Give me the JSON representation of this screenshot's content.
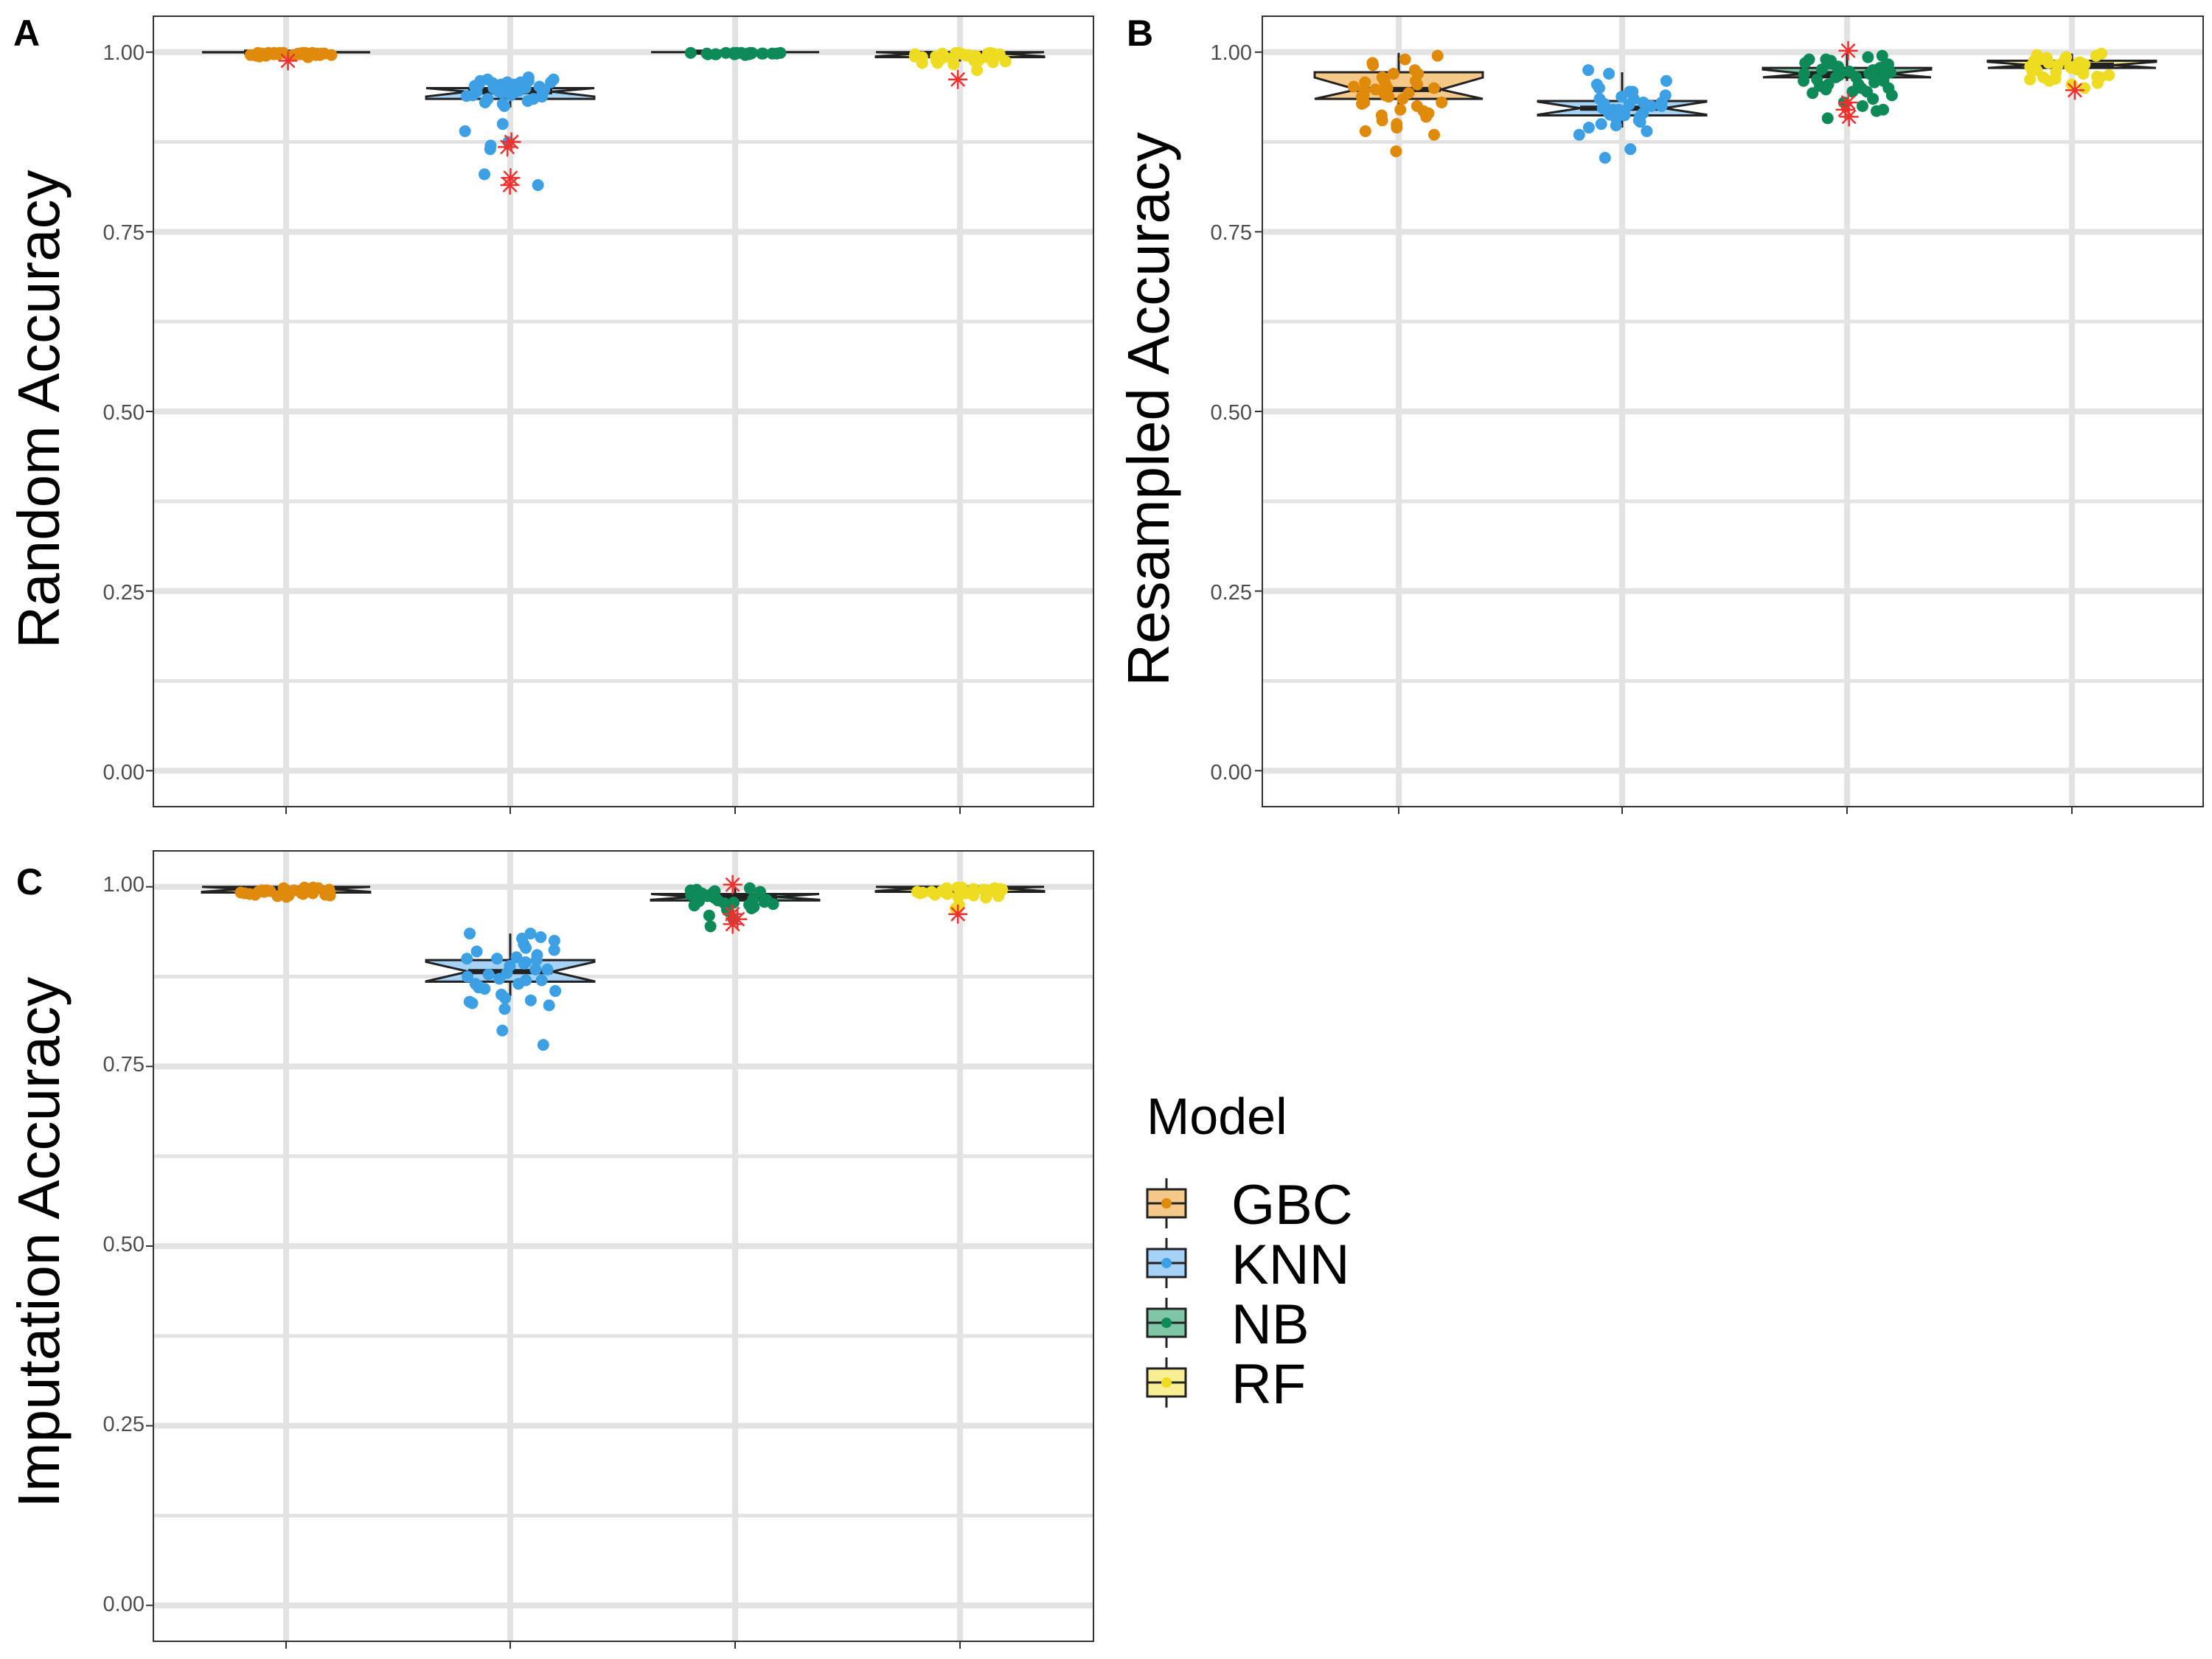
{
  "chart_data": [
    {
      "type": "boxplot",
      "panel_label": "A",
      "ylabel": "Random Accuracy",
      "ylim": [
        -0.05,
        1.05
      ],
      "yticks": [
        "0.00",
        "0.25",
        "0.50",
        "0.75",
        "1.00"
      ],
      "grid": true,
      "series": [
        {
          "name": "GBC",
          "box": [
            0.9995,
            0.9997,
            1.0,
            1.0,
            1.0
          ],
          "points": [
            0.997,
            0.999,
            0.998,
            0.996,
            0.999,
            0.997,
            0.995,
            0.998,
            0.999,
            0.996,
            0.993,
            0.998,
            0.997,
            0.999,
            0.996,
            0.998,
            0.994,
            0.999,
            0.997,
            0.998,
            0.996,
            0.999,
            0.998,
            0.997,
            0.995,
            0.999,
            0.998,
            0.996,
            0.997,
            0.999
          ],
          "outliers": [
            0.988
          ]
        },
        {
          "name": "KNN",
          "box": [
            0.923,
            0.935,
            0.945,
            0.95,
            0.955
          ],
          "points": [
            0.96,
            0.955,
            0.95,
            0.945,
            0.94,
            0.962,
            0.958,
            0.935,
            0.93,
            0.925,
            0.948,
            0.952,
            0.957,
            0.943,
            0.938,
            0.965,
            0.953,
            0.946,
            0.94,
            0.932,
            0.955,
            0.96,
            0.935,
            0.949,
            0.944,
            0.928,
            0.958,
            0.951,
            0.939,
            0.962,
            0.945,
            0.95,
            0.89,
            0.87,
            0.865,
            0.9,
            0.83,
            0.815,
            0.875,
            0.955,
            0.94,
            0.958
          ],
          "outliers": [
            0.875,
            0.868,
            0.825,
            0.815
          ]
        },
        {
          "name": "NB",
          "box": [
            0.999,
            1.0,
            1.0,
            1.0,
            1.0
          ],
          "points": [
            0.998,
            0.999,
            0.997,
            0.999,
            0.998,
            0.997,
            0.999,
            0.998,
            0.996,
            0.999,
            0.998,
            0.997,
            0.999,
            0.998,
            0.999,
            0.997,
            0.998,
            0.999,
            0.997,
            0.998,
            0.999,
            0.998
          ],
          "outliers": []
        },
        {
          "name": "RF",
          "box": [
            0.987,
            0.993,
            0.998,
            1.0,
            1.0
          ],
          "points": [
            0.998,
            0.995,
            0.99,
            0.985,
            0.997,
            0.993,
            0.988,
            0.999,
            0.996,
            0.992,
            0.986,
            0.994,
            0.998,
            0.991,
            0.983,
            0.997,
            0.995,
            0.989,
            0.999,
            0.993,
            0.987,
            0.996,
            0.99,
            0.998,
            0.994,
            0.985,
            0.997,
            0.992,
            0.975,
            0.995,
            0.999,
            0.988,
            0.996,
            0.993
          ],
          "outliers": [
            0.962
          ]
        }
      ]
    },
    {
      "type": "boxplot",
      "panel_label": "B",
      "ylabel": "Resampled Accuracy",
      "ylim": [
        -0.05,
        1.05
      ],
      "yticks": [
        "0.00",
        "0.25",
        "0.50",
        "0.75",
        "1.00"
      ],
      "grid": true,
      "series": [
        {
          "name": "GBC",
          "box": [
            0.92,
            0.935,
            0.948,
            0.972,
            0.999
          ],
          "points": [
            0.99,
            0.985,
            0.975,
            0.97,
            0.965,
            0.96,
            0.955,
            0.95,
            0.948,
            0.945,
            0.94,
            0.935,
            0.93,
            0.925,
            0.92,
            0.915,
            0.91,
            0.905,
            0.9,
            0.895,
            0.89,
            0.885,
            0.96,
            0.952,
            0.943,
            0.938,
            0.928,
            0.958,
            0.947,
            0.93,
            0.918,
            0.97,
            0.955,
            0.94,
            0.982,
            0.862,
            0.995,
            0.912,
            0.938,
            0.95
          ],
          "outliers": []
        },
        {
          "name": "KNN",
          "box": [
            0.895,
            0.912,
            0.922,
            0.932,
            0.972
          ],
          "points": [
            0.97,
            0.96,
            0.955,
            0.95,
            0.945,
            0.94,
            0.935,
            0.93,
            0.928,
            0.925,
            0.922,
            0.918,
            0.915,
            0.912,
            0.91,
            0.905,
            0.9,
            0.895,
            0.89,
            0.885,
            0.975,
            0.938,
            0.92,
            0.913,
            0.903,
            0.935,
            0.927,
            0.917,
            0.908,
            0.898,
            0.865,
            0.853,
            0.93,
            0.925,
            0.945,
            0.92
          ],
          "outliers": []
        },
        {
          "name": "NB",
          "box": [
            0.96,
            0.965,
            0.97,
            0.978,
            0.998
          ],
          "points": [
            0.995,
            0.99,
            0.985,
            0.98,
            0.978,
            0.975,
            0.972,
            0.97,
            0.968,
            0.965,
            0.962,
            0.96,
            0.955,
            0.95,
            0.945,
            0.94,
            0.935,
            0.93,
            0.925,
            0.92,
            0.985,
            0.975,
            0.965,
            0.955,
            0.945,
            0.99,
            0.98,
            0.97,
            0.96,
            0.95,
            0.908,
            0.918,
            0.993,
            0.983,
            0.973,
            0.963,
            0.953,
            0.943,
            0.976,
            0.967,
            0.958,
            0.948,
            0.988,
            0.978,
            0.968
          ],
          "outliers": [
            1.002,
            0.93,
            0.92,
            0.91
          ]
        },
        {
          "name": "RF",
          "box": [
            0.973,
            0.978,
            0.982,
            0.988,
            0.998
          ],
          "points": [
            0.998,
            0.995,
            0.992,
            0.99,
            0.988,
            0.985,
            0.982,
            0.98,
            0.978,
            0.975,
            0.972,
            0.97,
            0.968,
            0.965,
            0.962,
            0.96,
            0.957,
            0.955,
            0.95,
            0.985,
            0.975,
            0.965,
            0.993,
            0.983,
            0.973,
            0.963,
            0.996,
            0.986,
            0.976,
            0.966,
            0.99,
            0.98
          ],
          "outliers": [
            0.947
          ]
        }
      ]
    },
    {
      "type": "boxplot",
      "panel_label": "C",
      "ylabel": "Imputation Accuracy",
      "ylim": [
        -0.05,
        1.05
      ],
      "yticks": [
        "0.00",
        "0.25",
        "0.50",
        "0.75",
        "1.00"
      ],
      "grid": true,
      "series": [
        {
          "name": "GBC",
          "box": [
            0.986,
            0.992,
            0.997,
            1.0,
            1.0
          ],
          "points": [
            0.999,
            0.997,
            0.995,
            0.993,
            0.991,
            0.989,
            0.987,
            0.998,
            0.996,
            0.994,
            0.992,
            0.99,
            0.988,
            0.986,
            0.999,
            0.997,
            0.995,
            0.993,
            0.991,
            0.989,
            0.998,
            0.996,
            0.994,
            0.992,
            0.99,
            0.988,
            0.997,
            0.995,
            0.993,
            0.991
          ],
          "outliers": []
        },
        {
          "name": "KNN",
          "box": [
            0.848,
            0.868,
            0.882,
            0.898,
            0.935
          ],
          "points": [
            0.935,
            0.93,
            0.925,
            0.92,
            0.915,
            0.91,
            0.905,
            0.9,
            0.895,
            0.89,
            0.885,
            0.88,
            0.875,
            0.87,
            0.865,
            0.86,
            0.855,
            0.85,
            0.845,
            0.84,
            0.835,
            0.83,
            0.928,
            0.912,
            0.898,
            0.885,
            0.872,
            0.858,
            0.842,
            0.935,
            0.9,
            0.87,
            0.8,
            0.78,
            0.893,
            0.878,
            0.862,
            0.838,
            0.865,
            0.902
          ],
          "outliers": []
        },
        {
          "name": "NB",
          "box": [
            0.976,
            0.981,
            0.986,
            0.99,
            0.999
          ],
          "points": [
            0.998,
            0.996,
            0.994,
            0.992,
            0.99,
            0.988,
            0.986,
            0.984,
            0.982,
            0.98,
            0.978,
            0.976,
            0.974,
            0.972,
            0.97,
            0.968,
            0.995,
            0.991,
            0.987,
            0.983,
            0.979,
            0.975,
            0.96,
            0.955,
            0.945,
            0.993,
            0.989,
            0.985,
            0.981,
            0.977,
            0.973,
            0.966
          ],
          "outliers": [
            1.003,
            0.962,
            0.955,
            0.948
          ]
        },
        {
          "name": "RF",
          "box": [
            0.986,
            0.993,
            0.998,
            1.0,
            1.0
          ],
          "points": [
            0.999,
            0.997,
            0.995,
            0.993,
            0.991,
            0.989,
            0.987,
            0.985,
            0.998,
            0.996,
            0.994,
            0.992,
            0.99,
            0.988,
            0.975,
            0.97,
            0.999,
            0.997,
            0.995,
            0.993,
            0.991,
            0.998,
            0.996,
            0.994,
            0.99,
            0.986
          ],
          "outliers": [
            0.962
          ]
        }
      ]
    }
  ],
  "legend": {
    "title": "Model",
    "items": [
      {
        "label": "GBC"
      },
      {
        "label": "KNN"
      },
      {
        "label": "NB"
      },
      {
        "label": "RF"
      }
    ]
  },
  "colors": {
    "GBC": {
      "point": "#E08A0B",
      "fill": "#F5C98A"
    },
    "KNN": {
      "point": "#3EA0E4",
      "fill": "#A6D3F5"
    },
    "NB": {
      "point": "#0E8A58",
      "fill": "#7FC6A6"
    },
    "RF": {
      "point": "#EEDC22",
      "fill": "#F8EE93"
    },
    "outlier": "#F0302E",
    "grid": "#E3E3E3",
    "axis_text": "#4D4D4D"
  }
}
